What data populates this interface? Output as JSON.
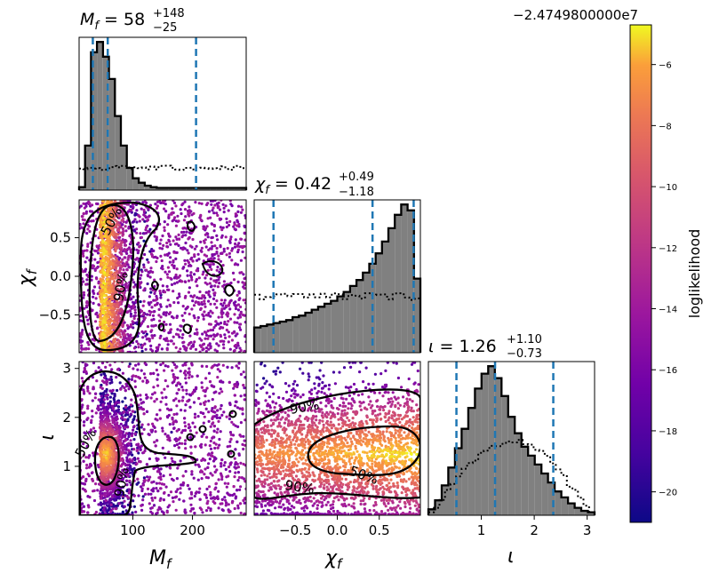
{
  "figure": {
    "offset_label": "−2.4749800000e7"
  },
  "colorbar": {
    "label": "loglikelihood",
    "ticks": [
      "−6",
      "−8",
      "−10",
      "−12",
      "−14",
      "−16",
      "−18",
      "−20"
    ],
    "range": [
      -21,
      -4.7
    ],
    "colormap": "plasma"
  },
  "params": {
    "Mf": {
      "symbol": "M",
      "sub": "f",
      "median": "58",
      "plus": "+148",
      "minus": "−25"
    },
    "chi": {
      "symbol": "χ",
      "sub": "f",
      "median": "0.42",
      "plus": "+0.49",
      "minus": "−1.18"
    },
    "iota": {
      "symbol": "ι",
      "sub": "",
      "median": "1.26",
      "plus": "+1.10",
      "minus": "−0.73"
    }
  },
  "axes": {
    "Mf_ticks": [
      "100",
      "200"
    ],
    "chi_xticks": [
      "−0.5",
      "0.0",
      "0.5"
    ],
    "chi_yticks": [
      "0.5",
      "0.0",
      "−0.5"
    ],
    "iota_xticks": [
      "1",
      "2",
      "3"
    ],
    "iota_yticks": [
      "3",
      "2",
      "1"
    ]
  },
  "contour_labels": {
    "p50": "50%",
    "p90": "90%"
  },
  "chart_data": {
    "type": "corner",
    "parameters": [
      "M_f",
      "χ_f",
      "ι"
    ],
    "ranges": {
      "M_f": [
        10,
        290
      ],
      "chi_f": [
        -0.99,
        0.99
      ],
      "iota": [
        0,
        3.14
      ]
    },
    "quantiles": {
      "M_f": [
        33,
        58,
        206
      ],
      "chi_f": [
        -0.76,
        0.42,
        0.91
      ],
      "iota": [
        0.53,
        1.26,
        2.36
      ]
    },
    "hist_M_f_posterior": [
      0.02,
      0.3,
      0.93,
      1.0,
      0.9,
      0.75,
      0.5,
      0.3,
      0.15,
      0.08,
      0.05,
      0.03,
      0.02,
      0.015,
      0.015,
      0.015,
      0.015,
      0.015,
      0.015,
      0.015,
      0.015,
      0.015,
      0.015,
      0.015,
      0.015,
      0.015,
      0.015,
      0.015
    ],
    "hist_chi_f_posterior": [
      0.17,
      0.18,
      0.19,
      0.2,
      0.21,
      0.22,
      0.24,
      0.25,
      0.27,
      0.29,
      0.31,
      0.33,
      0.35,
      0.38,
      0.41,
      0.45,
      0.49,
      0.54,
      0.6,
      0.67,
      0.75,
      0.84,
      0.93,
      1.0,
      0.96,
      0.5
    ],
    "hist_iota_posterior": [
      0.04,
      0.1,
      0.2,
      0.32,
      0.45,
      0.58,
      0.72,
      0.85,
      0.95,
      1.0,
      0.92,
      0.8,
      0.66,
      0.55,
      0.46,
      0.4,
      0.34,
      0.28,
      0.22,
      0.16,
      0.12,
      0.08,
      0.05,
      0.03,
      0.02
    ],
    "contour_levels": [
      "50%",
      "90%"
    ]
  }
}
